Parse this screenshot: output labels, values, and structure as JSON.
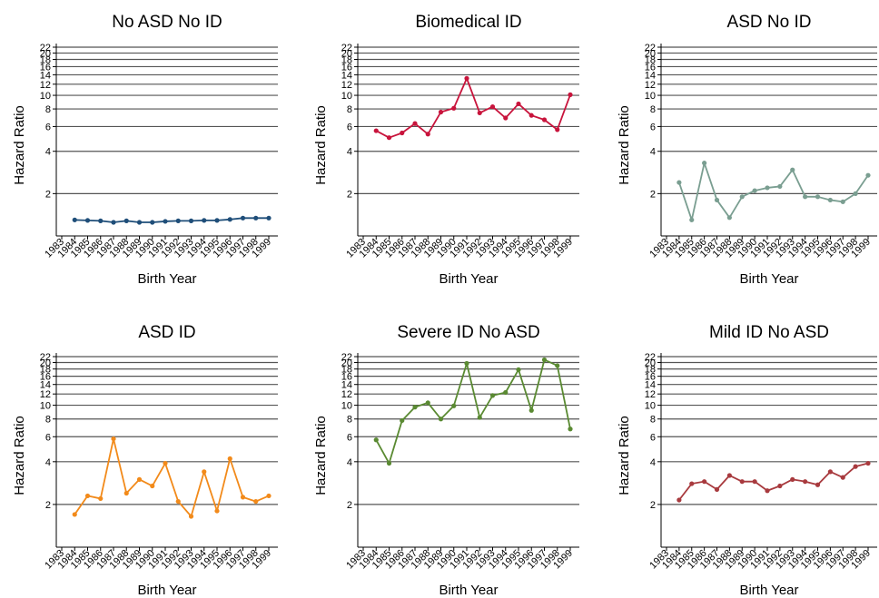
{
  "chart_data": [
    {
      "type": "line",
      "title": "No ASD No ID",
      "xlabel": "Birth Year",
      "ylabel": "Hazard Ratio",
      "x": [
        1984,
        1985,
        1986,
        1987,
        1988,
        1989,
        1990,
        1991,
        1992,
        1993,
        1994,
        1995,
        1996,
        1997,
        1998,
        1999
      ],
      "x_ticks": [
        "1983",
        "1984",
        "1985",
        "1986",
        "1987",
        "1988",
        "1989",
        "1990",
        "1991",
        "1992",
        "1993",
        "1994",
        "1995",
        "1996",
        "1997",
        "1998",
        "1999"
      ],
      "y_ticks": [
        2,
        4,
        6,
        8,
        10,
        12,
        14,
        16,
        18,
        20,
        22
      ],
      "y_scale": "log",
      "ylim": [
        1,
        22
      ],
      "color": "#1f4e79",
      "series": [
        {
          "values": [
            1.3,
            1.29,
            1.28,
            1.25,
            1.28,
            1.25,
            1.25,
            1.27,
            1.28,
            1.28,
            1.29,
            1.29,
            1.31,
            1.34,
            1.34,
            1.34
          ]
        }
      ]
    },
    {
      "type": "line",
      "title": "Biomedical ID",
      "xlabel": "Birth Year",
      "ylabel": "Hazard Ratio",
      "x": [
        1984,
        1985,
        1986,
        1987,
        1988,
        1989,
        1990,
        1991,
        1992,
        1993,
        1994,
        1995,
        1996,
        1997,
        1998,
        1999
      ],
      "x_ticks": [
        "1983",
        "1984",
        "1985",
        "1986",
        "1987",
        "1988",
        "1989",
        "1990",
        "1991",
        "1992",
        "1993",
        "1994",
        "1995",
        "1996",
        "1997",
        "1998",
        "1999"
      ],
      "y_ticks": [
        2,
        4,
        6,
        8,
        10,
        12,
        14,
        16,
        18,
        20,
        22
      ],
      "y_scale": "log",
      "ylim": [
        1,
        22
      ],
      "color": "#c8143c",
      "series": [
        {
          "values": [
            5.6,
            5.0,
            5.4,
            6.3,
            5.3,
            7.6,
            8.1,
            13.2,
            7.5,
            8.3,
            6.9,
            8.7,
            7.2,
            6.7,
            5.7,
            10.1
          ]
        }
      ]
    },
    {
      "type": "line",
      "title": "ASD No ID",
      "xlabel": "Birth Year",
      "ylabel": "Hazard Ratio",
      "x": [
        1984,
        1985,
        1986,
        1987,
        1988,
        1989,
        1990,
        1991,
        1992,
        1993,
        1994,
        1995,
        1996,
        1997,
        1998,
        1999
      ],
      "x_ticks": [
        "1983",
        "1984",
        "1985",
        "1986",
        "1987",
        "1988",
        "1989",
        "1990",
        "1991",
        "1992",
        "1993",
        "1994",
        "1995",
        "1996",
        "1997",
        "1998",
        "1999"
      ],
      "y_ticks": [
        2,
        4,
        6,
        8,
        10,
        12,
        14,
        16,
        18,
        20,
        22
      ],
      "y_scale": "log",
      "ylim": [
        1,
        22
      ],
      "color": "#7a9e91",
      "series": [
        {
          "values": [
            2.4,
            1.3,
            3.3,
            1.8,
            1.35,
            1.9,
            2.1,
            2.2,
            2.25,
            2.95,
            1.9,
            1.9,
            1.8,
            1.75,
            2.0,
            2.7
          ]
        }
      ]
    },
    {
      "type": "line",
      "title": "ASD ID",
      "xlabel": "Birth Year",
      "ylabel": "Hazard Ratio",
      "x": [
        1984,
        1985,
        1986,
        1987,
        1988,
        1989,
        1990,
        1991,
        1992,
        1993,
        1994,
        1995,
        1996,
        1997,
        1998,
        1999
      ],
      "x_ticks": [
        "1983",
        "1984",
        "1985",
        "1986",
        "1987",
        "1988",
        "1989",
        "1990",
        "1991",
        "1992",
        "1993",
        "1994",
        "1995",
        "1996",
        "1997",
        "1998",
        "1999"
      ],
      "y_ticks": [
        2,
        4,
        6,
        8,
        10,
        12,
        14,
        16,
        18,
        20,
        22
      ],
      "y_scale": "log",
      "ylim": [
        1,
        22
      ],
      "color": "#f28a1a",
      "series": [
        {
          "values": [
            1.7,
            2.3,
            2.2,
            5.8,
            2.4,
            3.0,
            2.7,
            3.9,
            2.1,
            1.65,
            3.4,
            1.8,
            4.2,
            2.25,
            2.1,
            2.3
          ]
        }
      ]
    },
    {
      "type": "line",
      "title": "Severe ID No ASD",
      "xlabel": "Birth Year",
      "ylabel": "Hazard Ratio",
      "x": [
        1984,
        1985,
        1986,
        1987,
        1988,
        1989,
        1990,
        1991,
        1992,
        1993,
        1994,
        1995,
        1996,
        1997,
        1998,
        1999
      ],
      "x_ticks": [
        "1983",
        "1984",
        "1985",
        "1986",
        "1987",
        "1988",
        "1989",
        "1990",
        "1991",
        "1992",
        "1993",
        "1994",
        "1995",
        "1996",
        "1997",
        "1998",
        "1999"
      ],
      "y_ticks": [
        2,
        4,
        6,
        8,
        10,
        12,
        14,
        16,
        18,
        20,
        22
      ],
      "y_scale": "log",
      "ylim": [
        1,
        22
      ],
      "color": "#5a8a32",
      "series": [
        {
          "values": [
            5.7,
            3.9,
            7.8,
            9.7,
            10.4,
            8.0,
            9.9,
            19.7,
            8.2,
            11.7,
            12.3,
            17.8,
            9.2,
            20.9,
            19.0,
            6.8
          ]
        }
      ]
    },
    {
      "type": "line",
      "title": "Mild ID No ASD",
      "xlabel": "Birth Year",
      "ylabel": "Hazard Ratio",
      "x": [
        1984,
        1985,
        1986,
        1987,
        1988,
        1989,
        1990,
        1991,
        1992,
        1993,
        1994,
        1995,
        1996,
        1997,
        1998,
        1999
      ],
      "x_ticks": [
        "1983",
        "1984",
        "1985",
        "1986",
        "1987",
        "1988",
        "1989",
        "1990",
        "1991",
        "1992",
        "1993",
        "1994",
        "1995",
        "1996",
        "1997",
        "1998",
        "1999"
      ],
      "y_ticks": [
        2,
        4,
        6,
        8,
        10,
        12,
        14,
        16,
        18,
        20,
        22
      ],
      "y_scale": "log",
      "ylim": [
        1,
        22
      ],
      "color": "#a83a3e",
      "series": [
        {
          "values": [
            2.15,
            2.8,
            2.9,
            2.55,
            3.2,
            2.9,
            2.9,
            2.5,
            2.7,
            3.0,
            2.9,
            2.75,
            3.4,
            3.1,
            3.7,
            3.9
          ]
        }
      ]
    }
  ]
}
